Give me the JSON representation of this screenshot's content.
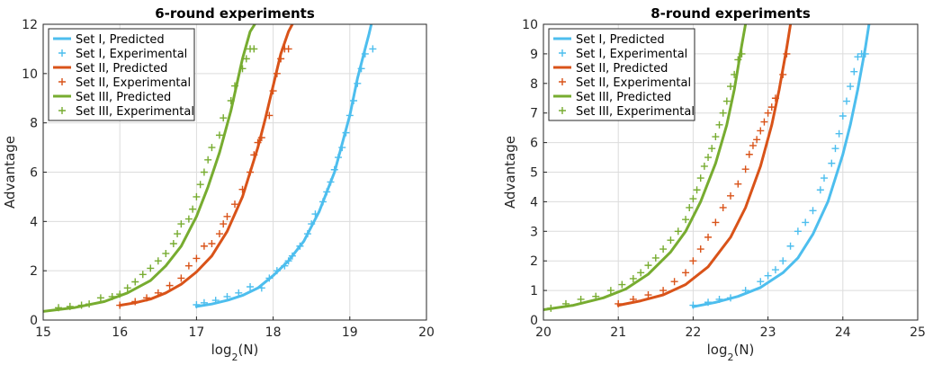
{
  "chart_data": [
    {
      "type": "line",
      "title": "6-round experiments",
      "xlabel": "log2(N)",
      "ylabel": "Advantage",
      "xlim": [
        15,
        20
      ],
      "ylim": [
        0,
        12
      ],
      "xticks": [
        "15",
        "16",
        "17",
        "18",
        "19",
        "20"
      ],
      "yticks": [
        "0",
        "2",
        "4",
        "6",
        "8",
        "10",
        "12"
      ],
      "grid": true,
      "legend_position": "top-left",
      "series": [
        {
          "name": "Set I, Predicted",
          "kind": "line",
          "color": "#4DBEEE",
          "x": [
            17.0,
            17.2,
            17.4,
            17.6,
            17.8,
            18.0,
            18.2,
            18.4,
            18.6,
            18.8,
            19.0,
            19.1,
            19.2,
            19.25,
            19.28
          ],
          "y": [
            0.55,
            0.65,
            0.8,
            1.0,
            1.3,
            1.8,
            2.4,
            3.2,
            4.4,
            6.0,
            8.3,
            9.8,
            11.0,
            11.6,
            12.0
          ]
        },
        {
          "name": "Set I, Experimental",
          "kind": "marker",
          "color": "#4DBEEE",
          "x": [
            17.0,
            17.1,
            17.25,
            17.4,
            17.55,
            17.7,
            17.85,
            17.95,
            18.05,
            18.15,
            18.2,
            18.25,
            18.35,
            18.45,
            18.5,
            18.55,
            18.65,
            18.7,
            18.75,
            18.8,
            18.85,
            18.9,
            18.95,
            19.0,
            19.05,
            19.1,
            19.15,
            19.2,
            19.3
          ],
          "y": [
            0.62,
            0.7,
            0.8,
            0.95,
            1.1,
            1.35,
            1.3,
            1.7,
            2.0,
            2.2,
            2.4,
            2.6,
            3.0,
            3.5,
            3.9,
            4.3,
            4.8,
            5.2,
            5.6,
            6.1,
            6.6,
            7.0,
            7.6,
            8.3,
            8.9,
            9.6,
            10.2,
            10.8,
            11.0
          ]
        },
        {
          "name": "Set II, Predicted",
          "kind": "line",
          "color": "#D95319",
          "x": [
            16.0,
            16.2,
            16.4,
            16.6,
            16.8,
            17.0,
            17.2,
            17.4,
            17.6,
            17.8,
            17.9,
            18.0,
            18.1,
            18.2,
            18.25
          ],
          "y": [
            0.6,
            0.7,
            0.85,
            1.1,
            1.45,
            1.95,
            2.6,
            3.6,
            5.0,
            7.0,
            8.2,
            9.5,
            10.8,
            11.7,
            12.0
          ]
        },
        {
          "name": "Set II, Experimental",
          "kind": "marker",
          "color": "#D95319",
          "x": [
            16.0,
            16.2,
            16.35,
            16.5,
            16.65,
            16.8,
            16.9,
            17.0,
            17.1,
            17.2,
            17.3,
            17.35,
            17.4,
            17.5,
            17.6,
            17.7,
            17.75,
            17.8,
            17.85,
            17.95,
            18.0,
            18.05,
            18.1,
            18.15,
            18.2
          ],
          "y": [
            0.6,
            0.75,
            0.9,
            1.1,
            1.4,
            1.7,
            2.2,
            2.5,
            3.0,
            3.1,
            3.5,
            3.9,
            4.2,
            4.7,
            5.3,
            6.0,
            6.7,
            7.2,
            7.4,
            8.3,
            9.3,
            10.0,
            10.6,
            11.0,
            11.0
          ]
        },
        {
          "name": "Set III, Predicted",
          "kind": "line",
          "color": "#77AC30",
          "x": [
            15.0,
            15.4,
            15.8,
            16.1,
            16.4,
            16.6,
            16.8,
            17.0,
            17.15,
            17.3,
            17.45,
            17.6,
            17.7,
            17.76
          ],
          "y": [
            0.35,
            0.5,
            0.75,
            1.1,
            1.6,
            2.2,
            3.0,
            4.2,
            5.4,
            6.8,
            8.5,
            10.6,
            11.7,
            12.0
          ]
        },
        {
          "name": "Set III, Experimental",
          "kind": "marker",
          "color": "#77AC30",
          "x": [
            15.2,
            15.35,
            15.5,
            15.6,
            15.75,
            15.9,
            16.0,
            16.1,
            16.2,
            16.3,
            16.4,
            16.5,
            16.6,
            16.7,
            16.75,
            16.8,
            16.9,
            16.95,
            17.0,
            17.05,
            17.1,
            17.15,
            17.2,
            17.3,
            17.35,
            17.45,
            17.5,
            17.6,
            17.65,
            17.7,
            17.75
          ],
          "y": [
            0.5,
            0.55,
            0.6,
            0.65,
            0.9,
            0.95,
            1.05,
            1.3,
            1.55,
            1.85,
            2.1,
            2.4,
            2.7,
            3.1,
            3.5,
            3.9,
            4.1,
            4.5,
            5.0,
            5.5,
            6.0,
            6.5,
            7.0,
            7.5,
            8.2,
            8.9,
            9.5,
            10.2,
            10.6,
            11.0,
            11.0
          ]
        }
      ]
    },
    {
      "type": "line",
      "title": "8-round experiments",
      "xlabel": "log2(N)",
      "ylabel": "Advantage",
      "xlim": [
        20,
        25
      ],
      "ylim": [
        0,
        10
      ],
      "xticks": [
        "20",
        "21",
        "22",
        "23",
        "24",
        "25"
      ],
      "yticks": [
        "0",
        "1",
        "2",
        "3",
        "4",
        "5",
        "6",
        "7",
        "8",
        "9",
        "10"
      ],
      "grid": true,
      "legend_position": "top-left",
      "series": [
        {
          "name": "Set I, Predicted",
          "kind": "line",
          "color": "#4DBEEE",
          "x": [
            22.0,
            22.3,
            22.6,
            22.9,
            23.2,
            23.4,
            23.6,
            23.8,
            24.0,
            24.1,
            24.2,
            24.3,
            24.35
          ],
          "y": [
            0.45,
            0.6,
            0.8,
            1.1,
            1.6,
            2.1,
            2.9,
            4.0,
            5.6,
            6.6,
            7.8,
            9.2,
            10.0
          ]
        },
        {
          "name": "Set I, Experimental",
          "kind": "marker",
          "color": "#4DBEEE",
          "x": [
            22.0,
            22.2,
            22.35,
            22.5,
            22.7,
            22.9,
            23.0,
            23.1,
            23.2,
            23.3,
            23.4,
            23.5,
            23.6,
            23.7,
            23.75,
            23.85,
            23.9,
            23.95,
            24.0,
            24.05,
            24.1,
            24.15,
            24.2,
            24.25,
            24.3
          ],
          "y": [
            0.5,
            0.6,
            0.7,
            0.75,
            1.0,
            1.3,
            1.5,
            1.7,
            2.0,
            2.5,
            3.0,
            3.3,
            3.7,
            4.4,
            4.8,
            5.3,
            5.8,
            6.3,
            6.9,
            7.4,
            7.9,
            8.4,
            8.9,
            9.0,
            9.0
          ]
        },
        {
          "name": "Set II, Predicted",
          "kind": "line",
          "color": "#D95319",
          "x": [
            21.0,
            21.3,
            21.6,
            21.9,
            22.2,
            22.5,
            22.7,
            22.9,
            23.05,
            23.15,
            23.25,
            23.3
          ],
          "y": [
            0.5,
            0.65,
            0.85,
            1.2,
            1.8,
            2.8,
            3.8,
            5.2,
            6.6,
            7.8,
            9.2,
            10.0
          ]
        },
        {
          "name": "Set II, Experimental",
          "kind": "marker",
          "color": "#D95319",
          "x": [
            21.0,
            21.2,
            21.4,
            21.6,
            21.75,
            21.9,
            22.0,
            22.1,
            22.2,
            22.3,
            22.4,
            22.5,
            22.6,
            22.7,
            22.75,
            22.8,
            22.85,
            22.9,
            22.95,
            23.0,
            23.05,
            23.1,
            23.2,
            23.25
          ],
          "y": [
            0.55,
            0.7,
            0.85,
            1.0,
            1.3,
            1.6,
            2.0,
            2.4,
            2.8,
            3.3,
            3.8,
            4.2,
            4.6,
            5.1,
            5.6,
            5.9,
            6.1,
            6.4,
            6.7,
            7.0,
            7.2,
            7.5,
            8.3,
            9.0
          ]
        },
        {
          "name": "Set III, Predicted",
          "kind": "line",
          "color": "#77AC30",
          "x": [
            20.0,
            20.4,
            20.8,
            21.1,
            21.4,
            21.7,
            21.9,
            22.1,
            22.3,
            22.45,
            22.55,
            22.65,
            22.7
          ],
          "y": [
            0.35,
            0.5,
            0.75,
            1.05,
            1.55,
            2.3,
            3.0,
            4.0,
            5.3,
            6.6,
            7.8,
            9.3,
            10.0
          ]
        },
        {
          "name": "Set III, Experimental",
          "kind": "marker",
          "color": "#77AC30",
          "x": [
            20.1,
            20.3,
            20.5,
            20.7,
            20.9,
            21.05,
            21.2,
            21.3,
            21.4,
            21.5,
            21.6,
            21.7,
            21.8,
            21.9,
            21.95,
            22.0,
            22.05,
            22.1,
            22.15,
            22.2,
            22.25,
            22.3,
            22.35,
            22.4,
            22.45,
            22.5,
            22.55,
            22.6,
            22.65
          ],
          "y": [
            0.4,
            0.55,
            0.7,
            0.8,
            1.0,
            1.2,
            1.4,
            1.6,
            1.85,
            2.1,
            2.4,
            2.7,
            3.0,
            3.4,
            3.8,
            4.1,
            4.4,
            4.8,
            5.2,
            5.5,
            5.8,
            6.2,
            6.6,
            7.0,
            7.4,
            7.9,
            8.3,
            8.8,
            9.0
          ]
        }
      ]
    }
  ]
}
